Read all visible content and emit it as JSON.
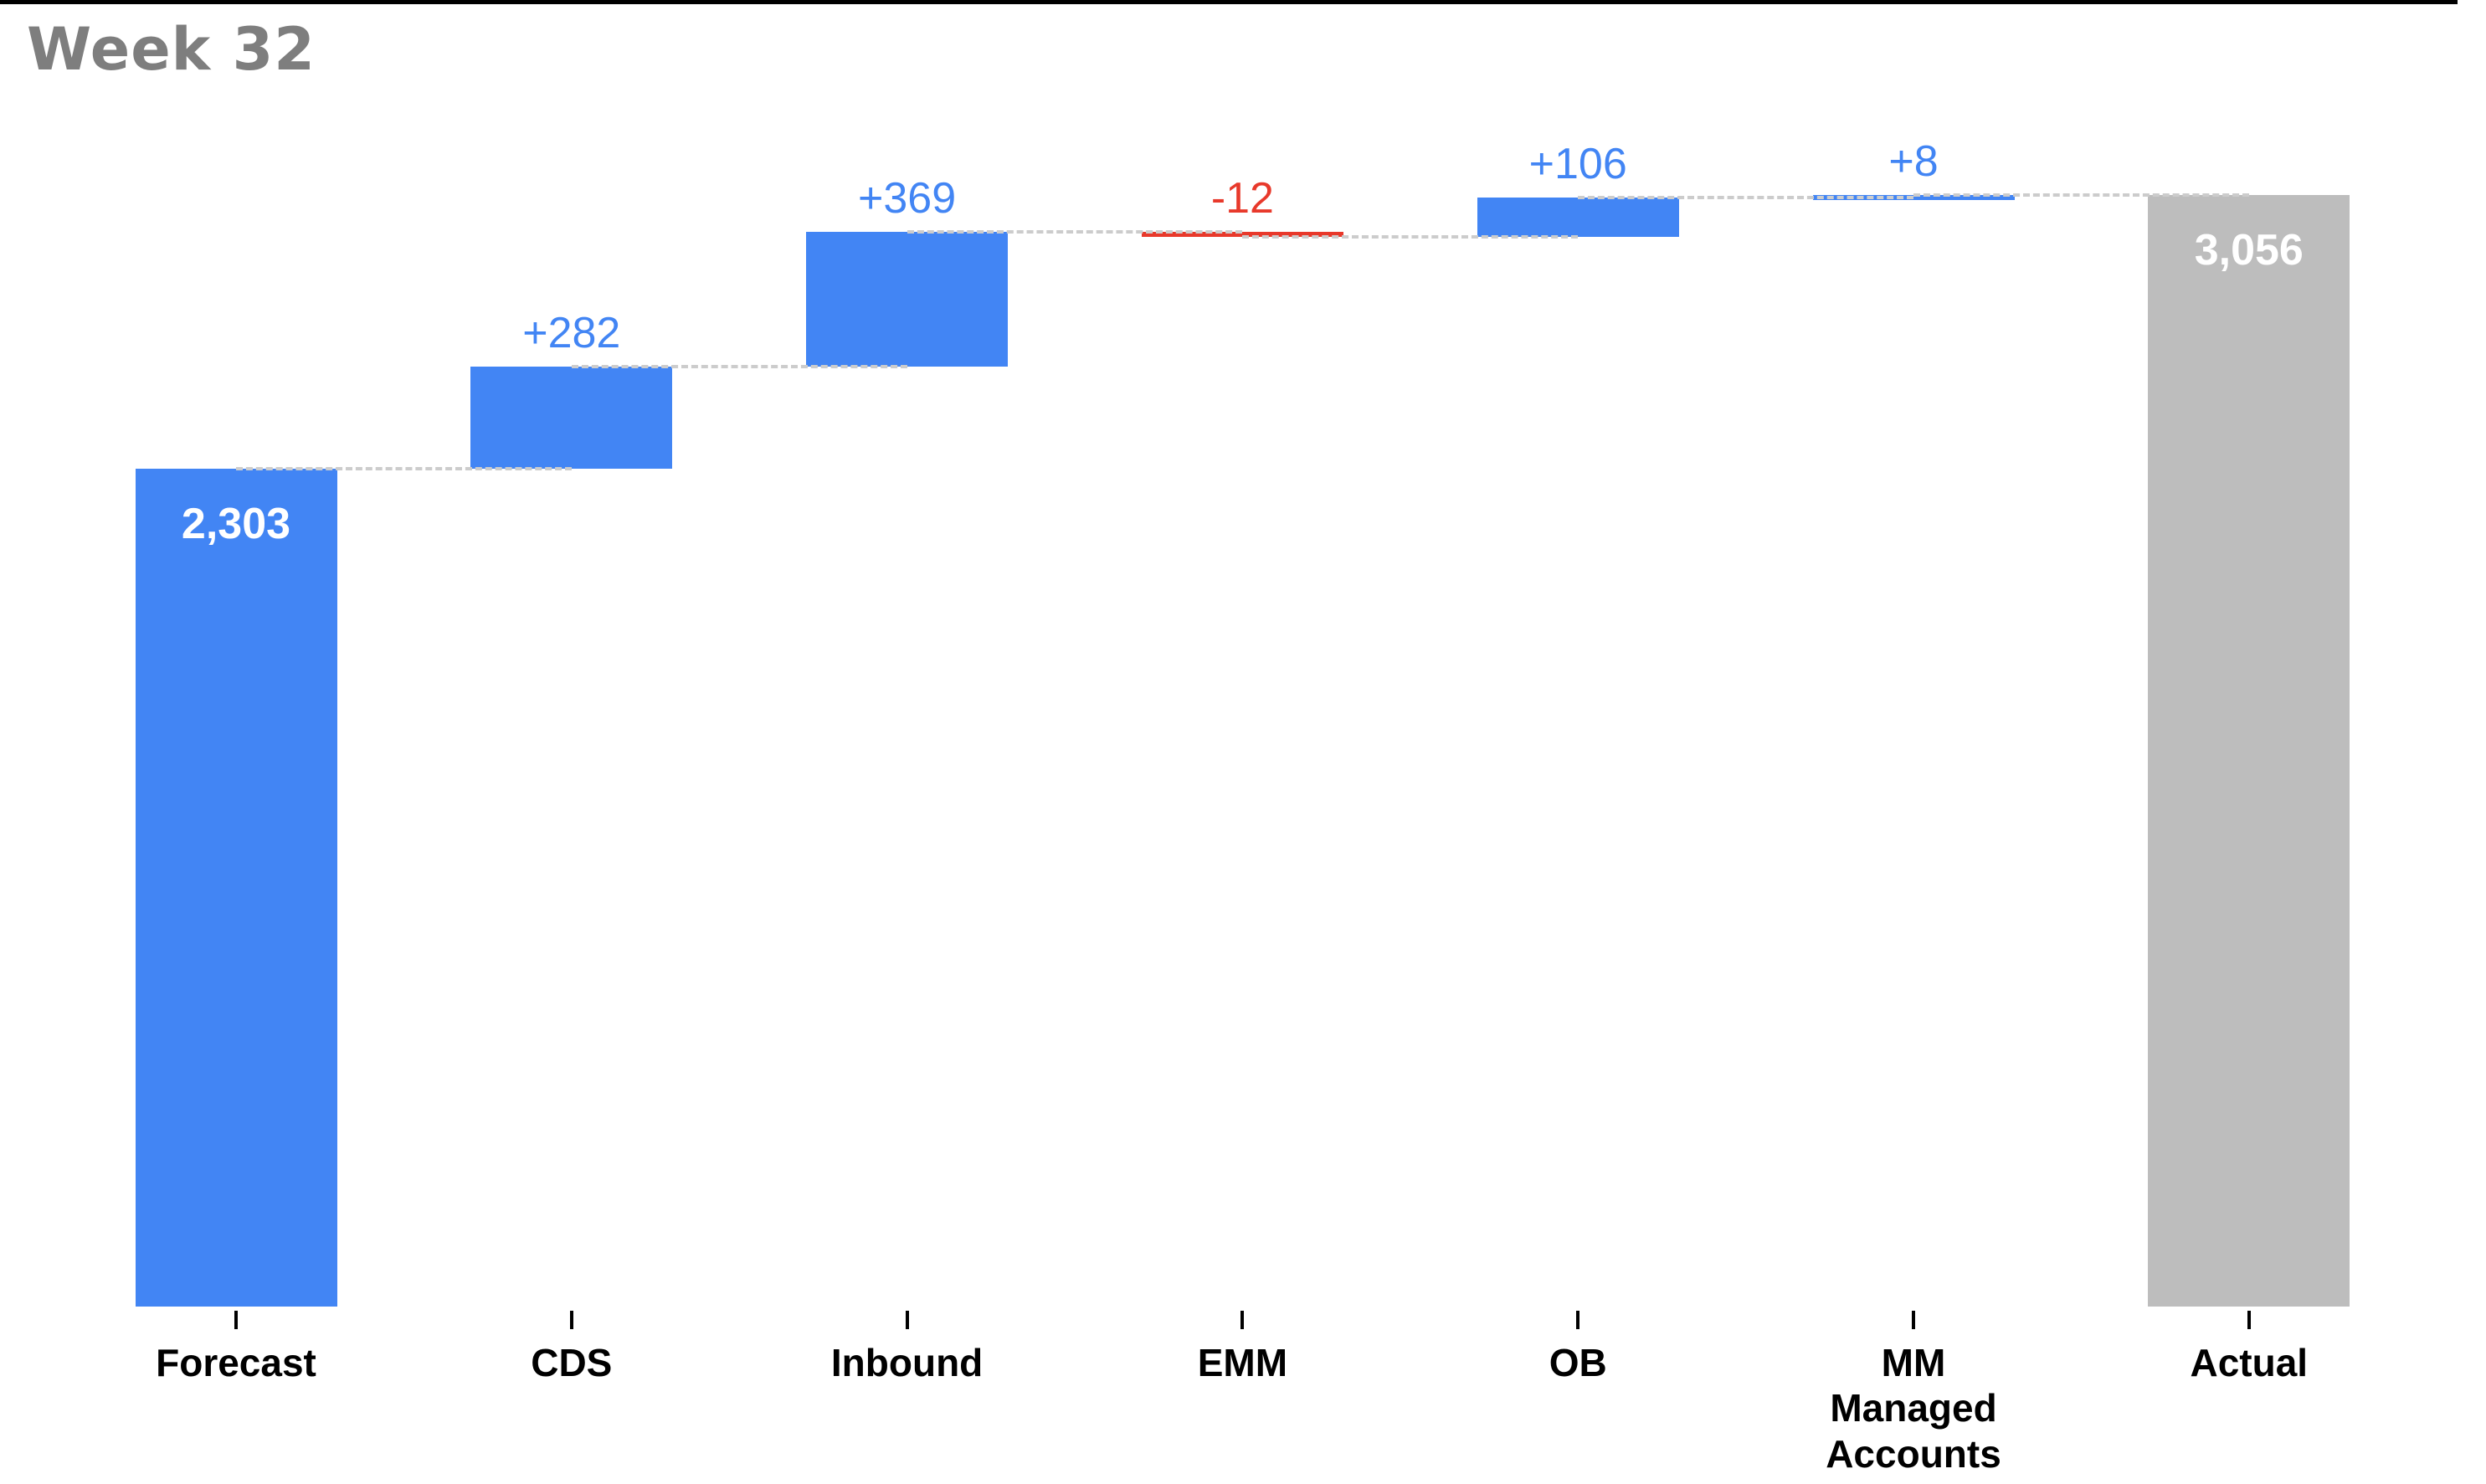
{
  "title": "Week 32",
  "colors": {
    "increase": "#4285f4",
    "decrease": "#e8392b",
    "start": "#4285f4",
    "total": "#bdbdbd",
    "connector": "#cccccc",
    "title": "#7e7e7e",
    "axis": "#000000",
    "inside_label": "#ffffff"
  },
  "chart_data": {
    "type": "bar",
    "subtype": "waterfall",
    "title": "Week 32",
    "xlabel": "",
    "ylabel": "",
    "grid": false,
    "legend": false,
    "connector_style": "dashed",
    "ylim": [
      0,
      3250
    ],
    "categories": [
      "Forecast",
      "CDS",
      "Inbound",
      "EMM",
      "OB",
      "MM Managed Accounts",
      "Actual"
    ],
    "steps": [
      {
        "label": "Forecast",
        "kind": "start",
        "value": 2303,
        "display": "2,303",
        "label_position": "inside"
      },
      {
        "label": "CDS",
        "kind": "delta",
        "value": 282,
        "display": "+282",
        "label_position": "above"
      },
      {
        "label": "Inbound",
        "kind": "delta",
        "value": 369,
        "display": "+369",
        "label_position": "above"
      },
      {
        "label": "EMM",
        "kind": "delta",
        "value": -12,
        "display": "-12",
        "label_position": "above"
      },
      {
        "label": "OB",
        "kind": "delta",
        "value": 106,
        "display": "+106",
        "label_position": "above"
      },
      {
        "label": "MM Managed Accounts",
        "kind": "delta",
        "value": 8,
        "display": "+8",
        "label_position": "above"
      },
      {
        "label": "Actual",
        "kind": "total",
        "value": 3056,
        "display": "3,056",
        "label_position": "inside"
      }
    ],
    "cumulative": [
      2303,
      2585,
      2954,
      2942,
      3048,
      3056,
      3056
    ]
  }
}
